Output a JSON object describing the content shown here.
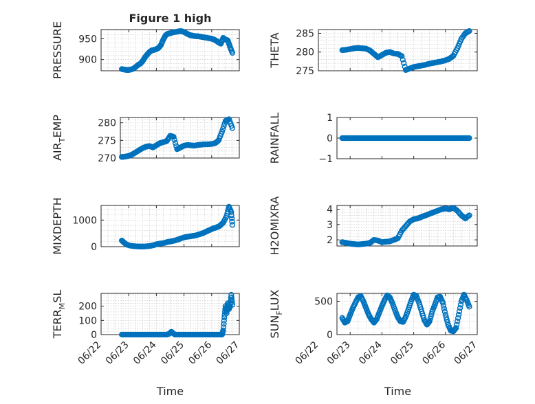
{
  "chart_data": [
    {
      "type": "scatter",
      "title": "Figure 1 high",
      "ylabel": "PRESSURE",
      "ylim": [
        873,
        972
      ],
      "yticks": [
        900,
        950
      ],
      "xlim": [
        "06/22",
        "06/27"
      ],
      "xticks": [
        "06/22",
        "06/23",
        "06/24",
        "06/25",
        "06/26",
        "06/27"
      ],
      "show_xticklabels": false,
      "grid": true,
      "color": "#0072BD",
      "x": [
        "06/22 18:00",
        "06/22 20:00",
        "06/22 22:00",
        "06/23 00:00",
        "06/23 02:00",
        "06/23 04:00",
        "06/23 06:00",
        "06/23 08:00",
        "06/23 10:00",
        "06/23 12:00",
        "06/23 14:00",
        "06/23 16:00",
        "06/23 18:00",
        "06/23 20:00",
        "06/23 22:00",
        "06/24 00:00",
        "06/24 02:00",
        "06/24 04:00",
        "06/24 06:00",
        "06/24 08:00",
        "06/24 10:00",
        "06/24 12:00",
        "06/24 14:00",
        "06/24 16:00",
        "06/24 18:00",
        "06/24 20:00",
        "06/24 22:00",
        "06/25 00:00",
        "06/25 02:00",
        "06/25 04:00",
        "06/25 06:00",
        "06/25 08:00",
        "06/25 10:00",
        "06/25 12:00",
        "06/25 14:00",
        "06/25 16:00",
        "06/25 18:00",
        "06/25 20:00",
        "06/25 22:00",
        "06/26 00:00",
        "06/26 02:00",
        "06/26 04:00",
        "06/26 06:00",
        "06/26 08:00",
        "06/26 10:00",
        "06/26 12:00",
        "06/26 14:00",
        "06/26 16:00",
        "06/26 18:00"
      ],
      "y": [
        877,
        876,
        875,
        875,
        876,
        878,
        882,
        887,
        890,
        896,
        905,
        912,
        918,
        922,
        923,
        925,
        928,
        935,
        948,
        958,
        962,
        963,
        965,
        966,
        967,
        968,
        968,
        966,
        963,
        960,
        958,
        957,
        956,
        956,
        955,
        954,
        953,
        952,
        951,
        950,
        948,
        945,
        941,
        938,
        952,
        948,
        946,
        930,
        916
      ]
    },
    {
      "type": "scatter",
      "ylabel": "THETA",
      "ylim": [
        275,
        286
      ],
      "yticks": [
        275,
        280,
        285
      ],
      "xlim": [
        "06/22",
        "06/27"
      ],
      "xticks": [
        "06/22",
        "06/23",
        "06/24",
        "06/25",
        "06/26",
        "06/27"
      ],
      "show_xticklabels": false,
      "grid": true,
      "color": "#0072BD",
      "x": [
        "06/22 18:00",
        "06/22 21:00",
        "06/23 00:00",
        "06/23 03:00",
        "06/23 06:00",
        "06/23 09:00",
        "06/23 12:00",
        "06/23 15:00",
        "06/23 18:00",
        "06/23 21:00",
        "06/24 00:00",
        "06/24 03:00",
        "06/24 06:00",
        "06/24 09:00",
        "06/24 12:00",
        "06/24 15:00",
        "06/24 18:00",
        "06/24 21:00",
        "06/25 00:00",
        "06/25 03:00",
        "06/25 06:00",
        "06/25 09:00",
        "06/25 12:00",
        "06/25 15:00",
        "06/25 18:00",
        "06/25 21:00",
        "06/26 00:00",
        "06/26 03:00",
        "06/26 06:00",
        "06/26 09:00",
        "06/26 12:00",
        "06/26 15:00",
        "06/26 18:00"
      ],
      "y": [
        280.5,
        280.6,
        280.8,
        281.0,
        281.1,
        281.0,
        280.9,
        280.4,
        279.5,
        278.6,
        279.2,
        279.8,
        280.0,
        279.6,
        279.5,
        278.9,
        275.2,
        275.6,
        276.0,
        276.2,
        276.4,
        276.6,
        276.9,
        277.1,
        277.3,
        277.5,
        277.8,
        278.2,
        279.0,
        281.0,
        283.5,
        285.0,
        285.6
      ]
    },
    {
      "type": "scatter",
      "ylabel": "AIR_TEMP",
      "ylim": [
        270,
        281.5
      ],
      "yticks": [
        270,
        275,
        280
      ],
      "xlim": [
        "06/22",
        "06/27"
      ],
      "xticks": [
        "06/22",
        "06/23",
        "06/24",
        "06/25",
        "06/26",
        "06/27"
      ],
      "show_xticklabels": false,
      "grid": true,
      "color": "#0072BD",
      "x": [
        "06/22 18:00",
        "06/22 21:00",
        "06/23 00:00",
        "06/23 03:00",
        "06/23 06:00",
        "06/23 09:00",
        "06/23 12:00",
        "06/23 15:00",
        "06/23 18:00",
        "06/23 21:00",
        "06/24 00:00",
        "06/24 03:00",
        "06/24 06:00",
        "06/24 09:00",
        "06/24 12:00",
        "06/24 15:00",
        "06/24 18:00",
        "06/24 21:00",
        "06/25 00:00",
        "06/25 03:00",
        "06/25 06:00",
        "06/25 09:00",
        "06/25 12:00",
        "06/25 15:00",
        "06/25 18:00",
        "06/25 21:00",
        "06/26 00:00",
        "06/26 03:00",
        "06/26 06:00",
        "06/26 09:00",
        "06/26 12:00",
        "06/26 15:00",
        "06/26 18:00"
      ],
      "y": [
        270.3,
        270.4,
        270.6,
        271.0,
        271.6,
        272.2,
        272.8,
        273.2,
        273.4,
        273.0,
        273.6,
        274.2,
        274.5,
        274.8,
        276.3,
        276.0,
        272.5,
        273.0,
        273.5,
        273.7,
        273.6,
        273.5,
        273.7,
        273.8,
        273.9,
        273.9,
        274.0,
        274.2,
        275.0,
        277.5,
        280.5,
        281.0,
        278.5
      ]
    },
    {
      "type": "scatter",
      "ylabel": "RAINFALL",
      "ylim": [
        -1,
        1
      ],
      "yticks": [
        -1,
        0,
        1
      ],
      "xlim": [
        "06/22",
        "06/27"
      ],
      "xticks": [
        "06/22",
        "06/23",
        "06/24",
        "06/25",
        "06/26",
        "06/27"
      ],
      "show_xticklabels": false,
      "grid": false,
      "color": "#0072BD",
      "x": [
        "06/22 18:00",
        "06/22 21:00",
        "06/23 00:00",
        "06/23 03:00",
        "06/23 06:00",
        "06/23 09:00",
        "06/23 12:00",
        "06/23 15:00",
        "06/23 18:00",
        "06/23 21:00",
        "06/24 00:00",
        "06/24 03:00",
        "06/24 06:00",
        "06/24 09:00",
        "06/24 12:00",
        "06/24 15:00",
        "06/24 18:00",
        "06/24 21:00",
        "06/25 00:00",
        "06/25 03:00",
        "06/25 06:00",
        "06/25 09:00",
        "06/25 12:00",
        "06/25 15:00",
        "06/25 18:00",
        "06/25 21:00",
        "06/26 00:00",
        "06/26 03:00",
        "06/26 06:00",
        "06/26 09:00",
        "06/26 12:00",
        "06/26 15:00",
        "06/26 18:00"
      ],
      "y": [
        0,
        0,
        0,
        0,
        0,
        0,
        0,
        0,
        0,
        0,
        0,
        0,
        0,
        0,
        0,
        0,
        0,
        0,
        0,
        0,
        0,
        0,
        0,
        0,
        0,
        0,
        0,
        0,
        0,
        0,
        0,
        0,
        0
      ]
    },
    {
      "type": "scatter",
      "ylabel": "MIXDEPTH",
      "ylim": [
        0,
        1550
      ],
      "yticks": [
        0,
        1000
      ],
      "xlim": [
        "06/22",
        "06/27"
      ],
      "xticks": [
        "06/22",
        "06/23",
        "06/24",
        "06/25",
        "06/26",
        "06/27"
      ],
      "show_xticklabels": false,
      "grid": true,
      "color": "#0072BD",
      "x": [
        "06/22 18:00",
        "06/22 20:00",
        "06/22 22:00",
        "06/23 01:00",
        "06/23 04:00",
        "06/23 07:00",
        "06/23 10:00",
        "06/23 13:00",
        "06/23 16:00",
        "06/23 19:00",
        "06/23 22:00",
        "06/24 01:00",
        "06/24 04:00",
        "06/24 07:00",
        "06/24 10:00",
        "06/24 13:00",
        "06/24 16:00",
        "06/24 19:00",
        "06/24 22:00",
        "06/25 01:00",
        "06/25 04:00",
        "06/25 07:00",
        "06/25 10:00",
        "06/25 13:00",
        "06/25 16:00",
        "06/25 19:00",
        "06/25 22:00",
        "06/26 01:00",
        "06/26 04:00",
        "06/26 07:00",
        "06/26 10:00",
        "06/26 13:00",
        "06/26 15:00",
        "06/26 17:00",
        "06/26 18:00"
      ],
      "y": [
        230,
        150,
        80,
        40,
        20,
        10,
        5,
        5,
        15,
        30,
        60,
        100,
        120,
        140,
        180,
        200,
        230,
        270,
        320,
        360,
        380,
        400,
        420,
        460,
        500,
        560,
        620,
        680,
        720,
        780,
        900,
        1150,
        1500,
        1300,
        820
      ]
    },
    {
      "type": "scatter",
      "ylabel": "H2OMIXRA",
      "ylim": [
        1.6,
        4.25
      ],
      "yticks": [
        2,
        3,
        4
      ],
      "xlim": [
        "06/22",
        "06/27"
      ],
      "xticks": [
        "06/22",
        "06/23",
        "06/24",
        "06/25",
        "06/26",
        "06/27"
      ],
      "show_xticklabels": false,
      "grid": true,
      "color": "#0072BD",
      "x": [
        "06/22 18:00",
        "06/22 21:00",
        "06/23 00:00",
        "06/23 03:00",
        "06/23 06:00",
        "06/23 09:00",
        "06/23 12:00",
        "06/23 15:00",
        "06/23 18:00",
        "06/23 21:00",
        "06/24 00:00",
        "06/24 03:00",
        "06/24 06:00",
        "06/24 09:00",
        "06/24 12:00",
        "06/24 15:00",
        "06/24 18:00",
        "06/24 21:00",
        "06/25 00:00",
        "06/25 03:00",
        "06/25 06:00",
        "06/25 09:00",
        "06/25 12:00",
        "06/25 15:00",
        "06/25 18:00",
        "06/25 21:00",
        "06/26 00:00",
        "06/26 03:00",
        "06/26 06:00",
        "06/26 09:00",
        "06/26 12:00",
        "06/26 15:00",
        "06/26 18:00"
      ],
      "y": [
        1.85,
        1.8,
        1.75,
        1.72,
        1.7,
        1.72,
        1.75,
        1.8,
        2.0,
        1.95,
        1.85,
        1.88,
        1.9,
        2.0,
        2.1,
        2.6,
        2.9,
        3.2,
        3.35,
        3.4,
        3.5,
        3.6,
        3.7,
        3.8,
        3.9,
        4.0,
        4.05,
        4.0,
        4.1,
        3.9,
        3.6,
        3.4,
        3.6
      ]
    },
    {
      "type": "scatter",
      "ylabel": "TERR_MSL",
      "ylim": [
        0,
        290
      ],
      "yticks": [
        0,
        100,
        200
      ],
      "xlim": [
        "06/22",
        "06/27"
      ],
      "xticks": [
        "06/22",
        "06/23",
        "06/24",
        "06/25",
        "06/26",
        "06/27"
      ],
      "show_xticklabels": true,
      "xlabel": "Time",
      "grid": true,
      "color": "#0072BD",
      "x": [
        "06/22 18:00",
        "06/22 21:00",
        "06/23 00:00",
        "06/23 03:00",
        "06/23 06:00",
        "06/23 09:00",
        "06/23 12:00",
        "06/23 15:00",
        "06/23 18:00",
        "06/23 21:00",
        "06/24 00:00",
        "06/24 03:00",
        "06/24 06:00",
        "06/24 09:00",
        "06/24 11:00",
        "06/24 13:00",
        "06/24 16:00",
        "06/24 19:00",
        "06/24 22:00",
        "06/25 01:00",
        "06/25 04:00",
        "06/25 07:00",
        "06/25 10:00",
        "06/25 13:00",
        "06/25 16:00",
        "06/25 19:00",
        "06/25 22:00",
        "06/26 01:00",
        "06/26 04:00",
        "06/26 07:00",
        "06/26 09:00",
        "06/26 10:00",
        "06/26 11:00",
        "06/26 12:00",
        "06/26 13:00",
        "06/26 14:00",
        "06/26 15:00",
        "06/26 16:00",
        "06/26 17:00",
        "06/26 18:00"
      ],
      "y": [
        0,
        0,
        0,
        0,
        0,
        0,
        0,
        0,
        0,
        0,
        0,
        0,
        0,
        0,
        5,
        20,
        0,
        0,
        0,
        0,
        0,
        0,
        0,
        0,
        0,
        0,
        0,
        0,
        0,
        0,
        0,
        30,
        120,
        200,
        150,
        220,
        180,
        200,
        280,
        210
      ]
    },
    {
      "type": "scatter",
      "ylabel": "SUN_FLUX",
      "ylim": [
        0,
        620
      ],
      "yticks": [
        0,
        500
      ],
      "xlim": [
        "06/22",
        "06/27"
      ],
      "xticks": [
        "06/22",
        "06/23",
        "06/24",
        "06/25",
        "06/26",
        "06/27"
      ],
      "show_xticklabels": true,
      "xlabel": "Time",
      "grid": true,
      "color": "#0072BD",
      "x": [
        "06/22 18:00",
        "06/22 20:00",
        "06/22 22:00",
        "06/23 00:00",
        "06/23 02:00",
        "06/23 04:00",
        "06/23 06:00",
        "06/23 08:00",
        "06/23 10:00",
        "06/23 12:00",
        "06/23 14:00",
        "06/23 16:00",
        "06/23 18:00",
        "06/23 20:00",
        "06/23 22:00",
        "06/24 00:00",
        "06/24 02:00",
        "06/24 04:00",
        "06/24 06:00",
        "06/24 08:00",
        "06/24 10:00",
        "06/24 12:00",
        "06/24 14:00",
        "06/24 16:00",
        "06/24 18:00",
        "06/24 20:00",
        "06/24 22:00",
        "06/25 00:00",
        "06/25 02:00",
        "06/25 04:00",
        "06/25 06:00",
        "06/25 08:00",
        "06/25 10:00",
        "06/25 12:00",
        "06/25 14:00",
        "06/25 16:00",
        "06/25 18:00",
        "06/25 20:00",
        "06/25 22:00",
        "06/26 00:00",
        "06/26 02:00",
        "06/26 04:00",
        "06/26 06:00",
        "06/26 08:00",
        "06/26 10:00",
        "06/26 12:00",
        "06/26 14:00",
        "06/26 16:00",
        "06/26 18:00"
      ],
      "y": [
        250,
        180,
        200,
        300,
        400,
        480,
        560,
        580,
        500,
        400,
        300,
        230,
        180,
        230,
        330,
        430,
        520,
        590,
        560,
        470,
        360,
        260,
        200,
        190,
        270,
        380,
        500,
        600,
        580,
        480,
        350,
        220,
        150,
        200,
        350,
        450,
        560,
        570,
        480,
        300,
        150,
        60,
        50,
        100,
        300,
        500,
        600,
        520,
        420
      ]
    }
  ]
}
